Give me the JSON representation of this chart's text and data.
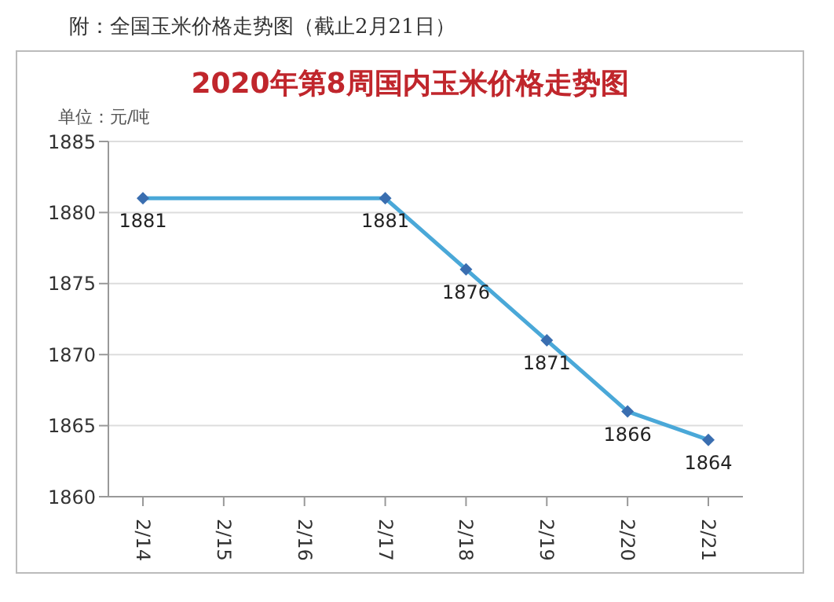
{
  "chart_data": {
    "type": "line",
    "title": "2020年第8周国内玉米价格走势图",
    "ylabel": "单位：元/吨",
    "annotations": [
      "附：全国玉米价格走势图（截止2月21日）"
    ],
    "categories": [
      "2/14",
      "2/15",
      "2/16",
      "2/17",
      "2/18",
      "2/19",
      "2/20",
      "2/21"
    ],
    "series": [
      {
        "color": "#4aa8d8",
        "values": [
          1881,
          null,
          null,
          1881,
          1876,
          1871,
          1866,
          1864
        ]
      }
    ],
    "ylim": [
      1860,
      1885
    ],
    "yticks": [
      1860,
      1865,
      1870,
      1875,
      1880,
      1885
    ],
    "grid": "y",
    "legend": false,
    "marker": "diamond",
    "line_style": "solid",
    "data_labels": true
  }
}
